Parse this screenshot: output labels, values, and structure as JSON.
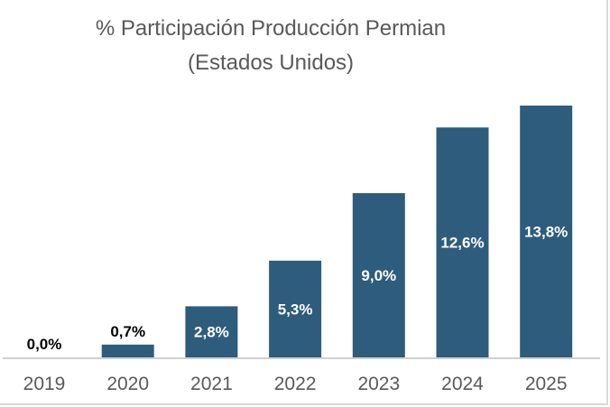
{
  "chart_data": {
    "type": "bar",
    "title": "% Participación Producción Permian",
    "subtitle": "(Estados Unidos)",
    "categories": [
      "2019",
      "2020",
      "2021",
      "2022",
      "2023",
      "2024",
      "2025"
    ],
    "values": [
      0.0,
      0.7,
      2.8,
      5.3,
      9.0,
      12.6,
      13.8
    ],
    "data_labels": [
      "0,0%",
      "0,7%",
      "2,8%",
      "5,3%",
      "9,0%",
      "12,6%",
      "13,8%"
    ],
    "xlabel": "",
    "ylabel": "",
    "ylim": [
      0,
      13.8
    ],
    "grid": false,
    "colors": {
      "bar": "#2e5c7c",
      "label_inside": "#ffffff",
      "label_outside": "#000000",
      "axis": "#d0d0d0",
      "tick_label": "#595959"
    }
  }
}
